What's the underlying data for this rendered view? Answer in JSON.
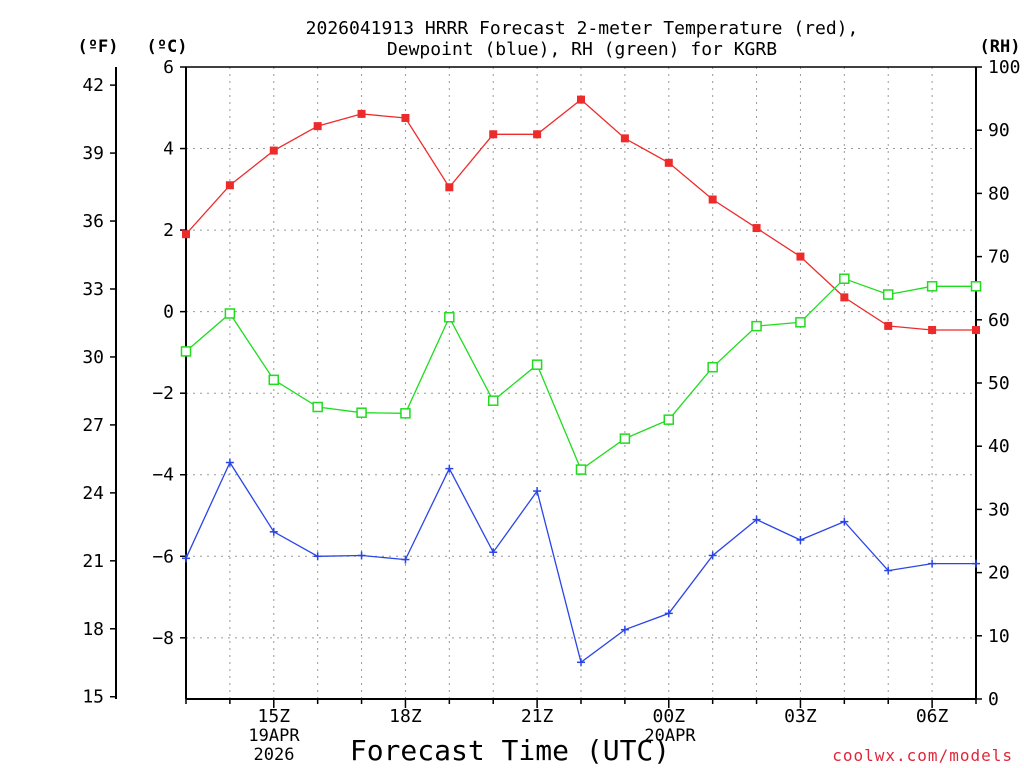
{
  "title_line1": "2026041913 HRRR Forecast 2-meter Temperature (red),",
  "title_line2": "Dewpoint (blue), RH (green) for KGRB",
  "units": {
    "f": "(ºF)",
    "c": "(ºC)",
    "rh": "(RH)"
  },
  "xlabel": "Forecast Time (UTC)",
  "credit": "coolwx.com/models",
  "date1": {
    "line1": "19APR",
    "line2": "2026"
  },
  "date2": {
    "line1": "20APR"
  },
  "colors": {
    "temp": "#ee2b2b",
    "dew": "#2a45e6",
    "rh": "#1fdc1f"
  },
  "chart_data": {
    "type": "line",
    "x_hours_utc": [
      13,
      14,
      15,
      16,
      17,
      18,
      19,
      20,
      21,
      22,
      23,
      0,
      1,
      2,
      3,
      4,
      5,
      6,
      7
    ],
    "xlim_hours_from_13z": [
      0,
      18
    ],
    "x_tick_labels": [
      "15Z",
      "18Z",
      "21Z",
      "00Z",
      "03Z",
      "06Z"
    ],
    "series": [
      {
        "name": "Temperature",
        "unit": "C",
        "axis": "left_c",
        "marker": "filled-square",
        "values": [
          1.9,
          3.1,
          3.95,
          4.55,
          4.85,
          4.75,
          3.05,
          4.35,
          4.35,
          5.2,
          4.25,
          3.65,
          2.75,
          2.05,
          1.35,
          0.35,
          -0.35,
          -0.45,
          -0.45
        ]
      },
      {
        "name": "Dewpoint",
        "unit": "C",
        "axis": "left_c",
        "marker": "plus",
        "values": [
          -6.05,
          -3.7,
          -5.4,
          -6.0,
          -5.98,
          -6.08,
          -3.85,
          -5.9,
          -4.4,
          -8.6,
          -7.8,
          -7.4,
          -5.98,
          -5.1,
          -5.6,
          -5.15,
          -6.35,
          -6.18,
          -6.18
        ]
      },
      {
        "name": "RH",
        "unit": "%",
        "axis": "right_rh",
        "marker": "open-square",
        "values": [
          55,
          61,
          50.5,
          46.2,
          45.3,
          45.2,
          60.4,
          47.2,
          52.9,
          36.3,
          41.2,
          44.2,
          52.5,
          59,
          59.6,
          66.5,
          64,
          65.3,
          65.3
        ]
      }
    ],
    "left_c_axis": {
      "ylim": [
        -9.5,
        6
      ],
      "ticks": [
        6,
        4,
        2,
        0,
        -2,
        -4,
        -6,
        -8
      ]
    },
    "left_f_axis": {
      "ticks": [
        42,
        39,
        36,
        33,
        30,
        27,
        24,
        21,
        18,
        15
      ]
    },
    "right_rh_axis": {
      "ylim": [
        0,
        100
      ],
      "ticks": [
        100,
        90,
        80,
        70,
        60,
        50,
        40,
        30,
        20,
        10,
        0
      ]
    },
    "grid": true
  }
}
